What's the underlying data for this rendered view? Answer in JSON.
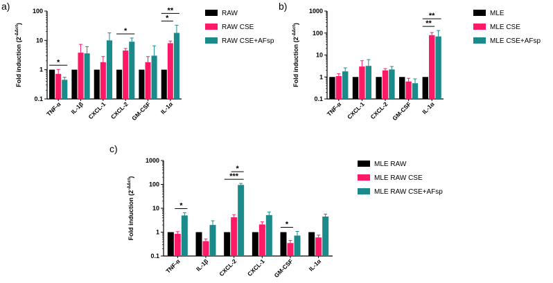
{
  "chart_data": [
    {
      "panel": "a)",
      "type": "bar",
      "yscale": "log",
      "ylim": [
        0.1,
        100
      ],
      "yticks": [
        "0.1",
        "1",
        "10",
        "100"
      ],
      "ylabel": "Fold induction (2",
      "ylabel_sup": "-ΔΔct",
      "ylabel_close": ")",
      "categories": [
        "TNF-α",
        "IL-1β",
        "CXCL-1",
        "CXCL-2",
        "GM-CSF",
        "IL-1α"
      ],
      "series": [
        {
          "name": "RAW",
          "color": "#000000",
          "values": [
            1,
            1,
            1,
            1,
            1,
            1
          ],
          "errors": [
            0,
            0,
            0,
            0,
            0,
            0
          ]
        },
        {
          "name": "RAW CSE",
          "color": "#ff1a66",
          "values": [
            0.72,
            3.8,
            1.8,
            4.5,
            1.8,
            8
          ],
          "errors": [
            0.3,
            3.5,
            1.0,
            0.8,
            1.0,
            1.5
          ]
        },
        {
          "name": "RAW CSE+AFsp",
          "color": "#1a8a8a",
          "values": [
            0.45,
            3.6,
            10,
            9,
            3,
            18
          ],
          "errors": [
            0.1,
            2.5,
            8,
            3,
            3.5,
            15
          ]
        }
      ],
      "annotations": [
        {
          "label": "*",
          "from": 0,
          "to": 0,
          "pair": [
            0,
            2
          ]
        },
        {
          "label": "*",
          "from": 3,
          "to": 3,
          "pair": [
            0,
            2
          ]
        },
        {
          "label": "*",
          "from": 5,
          "to": 5,
          "pair": [
            0,
            1
          ]
        },
        {
          "label": "**",
          "from": 5,
          "to": 5,
          "pair": [
            0,
            2
          ]
        }
      ]
    },
    {
      "panel": "b)",
      "type": "bar",
      "yscale": "log",
      "ylim": [
        0.1,
        1000
      ],
      "yticks": [
        "0.1",
        "1",
        "10",
        "100",
        "1000"
      ],
      "ylabel": "Fold induction (2",
      "ylabel_sup": "-ΔΔct",
      "ylabel_close": ")",
      "categories": [
        "TNF-α",
        "CXCL-1",
        "CXCL-2",
        "GM-CSF",
        "IL-1α"
      ],
      "series": [
        {
          "name": "MLE",
          "color": "#000000",
          "values": [
            1,
            1,
            1,
            1,
            1
          ],
          "errors": [
            0,
            0,
            0,
            0,
            0
          ]
        },
        {
          "name": "MLE CSE",
          "color": "#ff1a66",
          "values": [
            1.1,
            3.0,
            2.0,
            0.62,
            80
          ],
          "errors": [
            0.3,
            2.5,
            0.4,
            0.25,
            25
          ]
        },
        {
          "name": "MLE CSE+AFsp",
          "color": "#1a8a8a",
          "values": [
            1.8,
            3.2,
            2.2,
            0.52,
            70
          ],
          "errors": [
            0.8,
            3.0,
            0.8,
            0.3,
            60
          ]
        }
      ],
      "annotations": [
        {
          "label": "**",
          "from": 4,
          "to": 4,
          "pair": [
            0,
            1
          ]
        },
        {
          "label": "**",
          "from": 4,
          "to": 4,
          "pair": [
            0,
            2
          ]
        }
      ]
    },
    {
      "panel": "c)",
      "type": "bar",
      "yscale": "log",
      "ylim": [
        0.1,
        1000
      ],
      "yticks": [
        "0.1",
        "1",
        "10",
        "100",
        "1000"
      ],
      "ylabel": "Fold induction (2",
      "ylabel_sup": "-ΔΔct",
      "ylabel_close": ")",
      "categories": [
        "TNF-α",
        "IL-1β",
        "CXCL-2",
        "CXCL-1",
        "GM-CSF",
        "IL-1α"
      ],
      "series": [
        {
          "name": "MLE RAW",
          "color": "#000000",
          "values": [
            1,
            1,
            1,
            1,
            1,
            1
          ],
          "errors": [
            0,
            0,
            0,
            0,
            0,
            0
          ]
        },
        {
          "name": "MLE RAW CSE",
          "color": "#ff1a66",
          "values": [
            0.85,
            0.42,
            4.2,
            2.1,
            0.35,
            0.6
          ],
          "errors": [
            0.2,
            0.1,
            1.2,
            0.6,
            0.1,
            0.15
          ]
        },
        {
          "name": "MLE RAW CSE+AFsp",
          "color": "#1a8a8a",
          "values": [
            5,
            2,
            95,
            5.2,
            0.72,
            4.5
          ],
          "errors": [
            1.5,
            1.0,
            15,
            1.8,
            0.35,
            1.2
          ]
        }
      ],
      "annotations": [
        {
          "label": "*",
          "from": 0,
          "to": 0,
          "pair": [
            1,
            2
          ]
        },
        {
          "label": "***",
          "from": 2,
          "to": 2,
          "pair": [
            0,
            2
          ]
        },
        {
          "label": "*",
          "from": 2,
          "to": 2,
          "pair": [
            1,
            2
          ]
        },
        {
          "label": "*",
          "from": 4,
          "to": 4,
          "pair": [
            0,
            1
          ]
        }
      ]
    }
  ]
}
